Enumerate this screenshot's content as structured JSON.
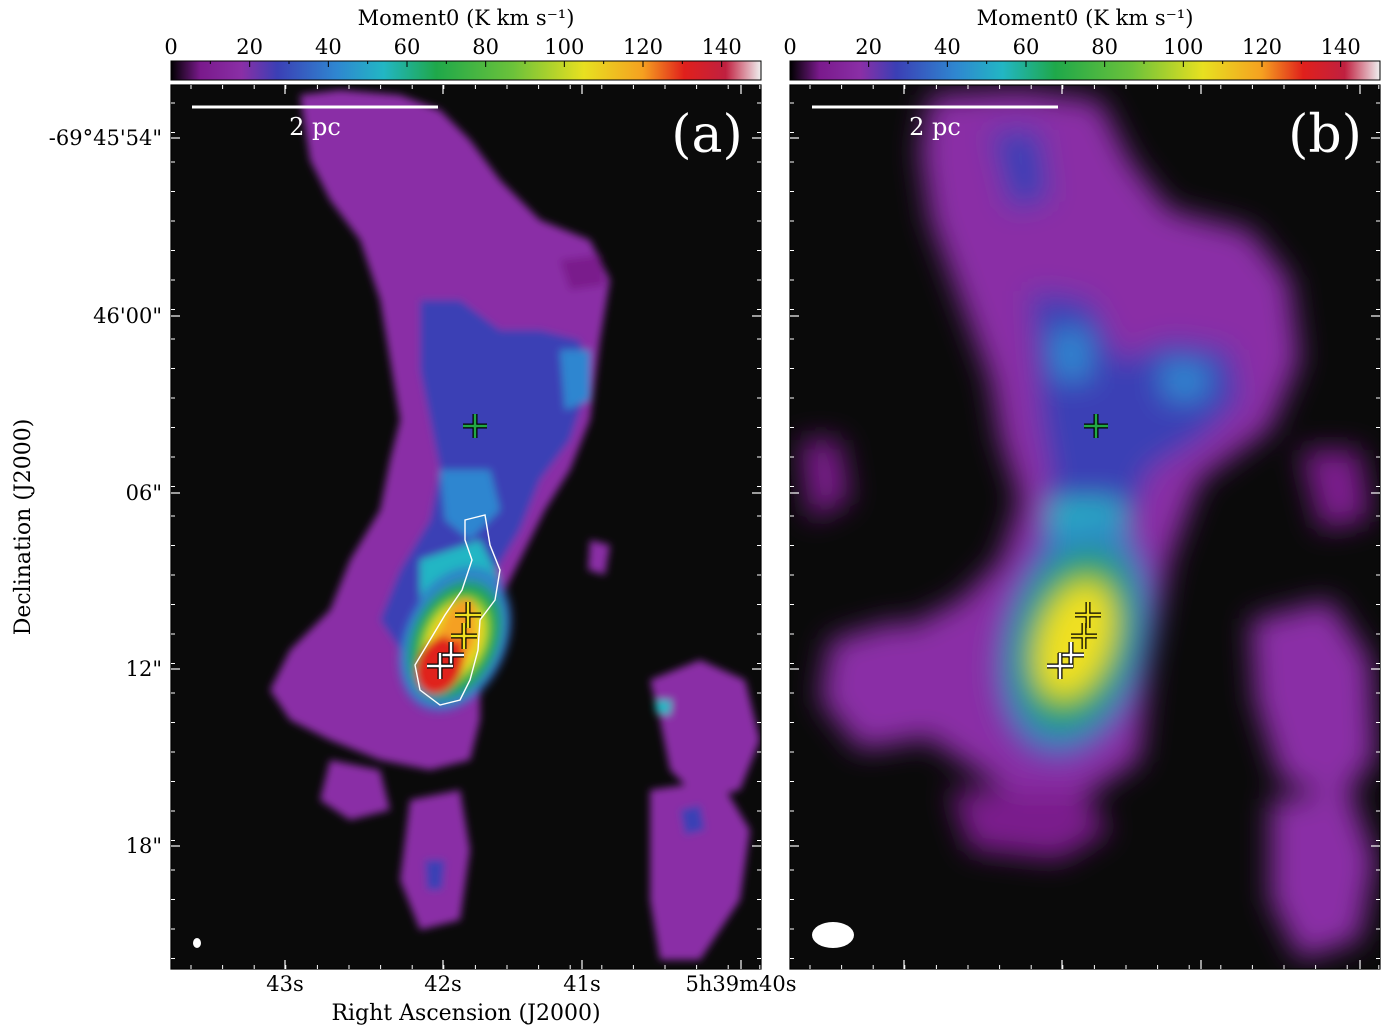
{
  "colorbar": {
    "title": "Moment0 (K km s⁻¹)",
    "ticks": [
      "0",
      "20",
      "40",
      "60",
      "80",
      "100",
      "120",
      "140"
    ],
    "tick_values": [
      0,
      20,
      40,
      60,
      80,
      100,
      120,
      140
    ],
    "range": [
      0,
      150
    ],
    "gradient": [
      "#000000",
      "#7a1a8c",
      "#8a2fa6",
      "#3b3fb5",
      "#2f86d0",
      "#22b6c4",
      "#1fa84a",
      "#6cc23a",
      "#e8e020",
      "#f5a020",
      "#e0201c",
      "#c02040",
      "#f0f0f0"
    ]
  },
  "panels": [
    {
      "label": "(a)",
      "scalebar": "2 pc",
      "markers": {
        "green": 1,
        "yellow": 2,
        "white": 2
      }
    },
    {
      "label": "(b)",
      "scalebar": "2 pc",
      "markers": {
        "green": 1,
        "yellow": 2,
        "white": 2
      }
    }
  ],
  "axes": {
    "ylabel": "Declination (J2000)",
    "xlabel": "Right Ascension (J2000)",
    "yticks": [
      "-69°45'54\"",
      "46'00\"",
      "06\"",
      "12\"",
      "18\""
    ],
    "xticks": [
      "43s",
      "42s",
      "41s",
      "5h39m40s"
    ]
  },
  "colors": {
    "background": "#0a0a0a",
    "diffuse": "#8a2fa6",
    "contour": "#ffffff"
  }
}
